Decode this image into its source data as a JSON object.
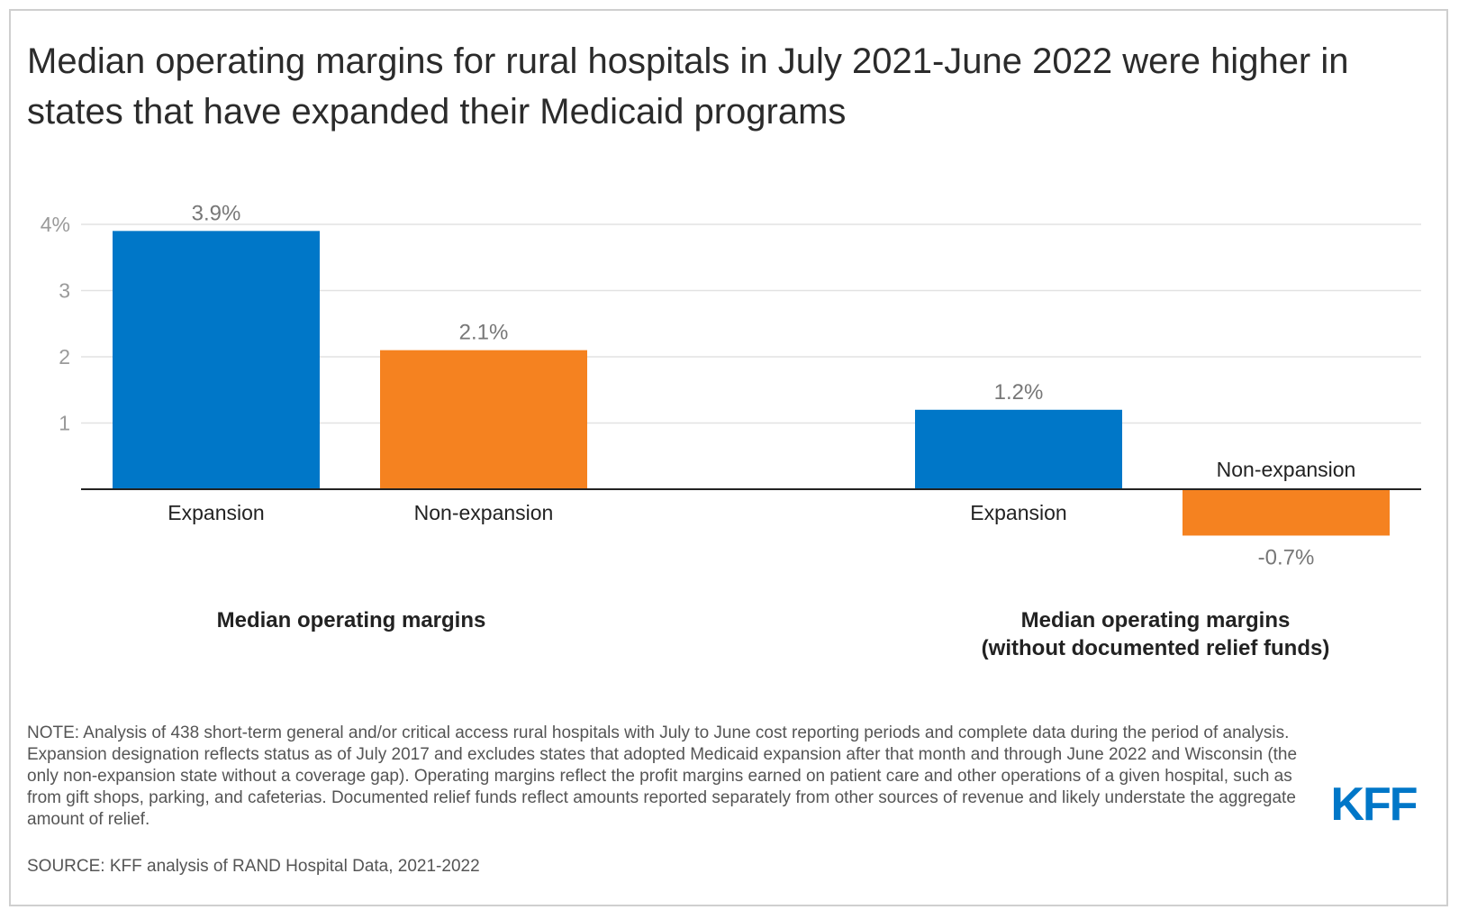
{
  "title": "Median operating margins for rural hospitals in July 2021-June 2022 were higher in states that have expanded their Medicaid programs",
  "colors": {
    "expansion": "#0077c8",
    "non_expansion": "#f58220",
    "axis": "#222222",
    "grid": "#e2e2e2",
    "tick": "#9a9a9a",
    "label": "#777777",
    "logo": "#0077c8"
  },
  "chart_data": {
    "type": "bar",
    "ylim": [
      -1,
      4
    ],
    "yticks": [
      1,
      2,
      3,
      4
    ],
    "ytick_labels": [
      "1",
      "2",
      "3",
      "4%"
    ],
    "grid": true,
    "groups": [
      {
        "label": "Median operating margins",
        "bars": [
          {
            "category": "Expansion",
            "value": 3.9,
            "value_label": "3.9%"
          },
          {
            "category": "Non-expansion",
            "value": 2.1,
            "value_label": "2.1%"
          }
        ]
      },
      {
        "label": "Median operating margins\n(without documented relief funds)",
        "bars": [
          {
            "category": "Expansion",
            "value": 1.2,
            "value_label": "1.2%"
          },
          {
            "category": "Non-expansion",
            "value": -0.7,
            "value_label": "-0.7%"
          }
        ]
      }
    ]
  },
  "group_labels": {
    "first": "Median operating margins",
    "second_line1": "Median operating margins",
    "second_line2": "(without documented relief funds)"
  },
  "note": "NOTE: Analysis of 438 short-term general and/or critical access rural hospitals with July to June cost reporting periods and complete data during the period of analysis. Expansion designation reflects status as of July 2017 and excludes states that adopted Medicaid expansion after that month and through June 2022 and Wisconsin (the only non-expansion state without a coverage gap). Operating margins reflect the profit margins earned on patient care and other operations of a given hospital, such as from gift shops, parking, and cafeterias. Documented relief funds reflect amounts reported separately from other sources of revenue and likely understate the aggregate amount of relief.",
  "source": "SOURCE: KFF analysis of RAND Hospital Data, 2021-2022",
  "logo_text": "KFF"
}
